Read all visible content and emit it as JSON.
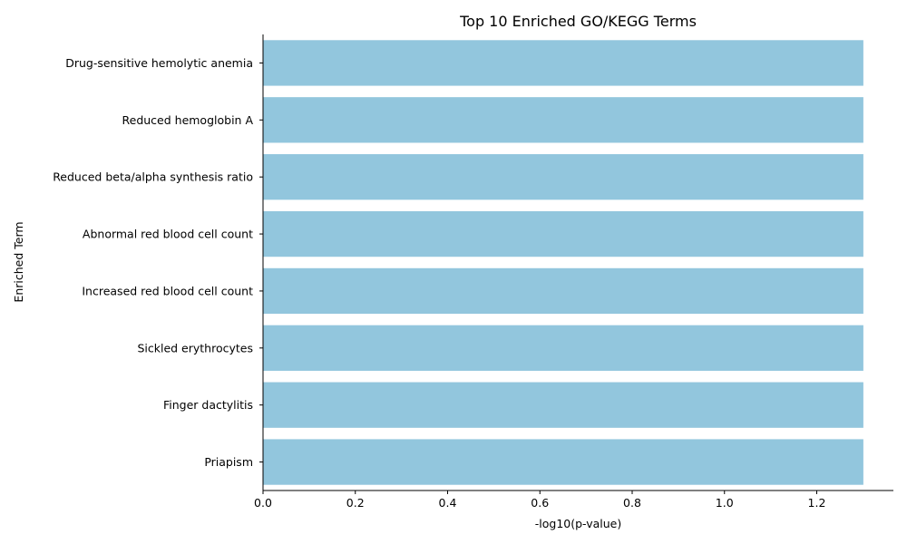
{
  "chart_data": {
    "type": "bar",
    "orientation": "horizontal",
    "title": "Top 10 Enriched GO/KEGG Terms",
    "xlabel": "-log10(p-value)",
    "ylabel": "Enriched Term",
    "categories": [
      "Drug-sensitive hemolytic anemia",
      "Reduced hemoglobin A",
      "Reduced beta/alpha synthesis ratio",
      "Abnormal red blood cell count",
      "Increased red blood cell count",
      "Sickled erythrocytes",
      "Finger dactylitis",
      "Priapism"
    ],
    "values": [
      1.301,
      1.301,
      1.301,
      1.301,
      1.301,
      1.301,
      1.301,
      1.301
    ],
    "xlim": [
      0,
      1.3661
    ],
    "xticks": [
      0.0,
      0.2,
      0.4,
      0.6,
      0.8,
      1.0,
      1.2
    ],
    "xtick_labels": [
      "0.0",
      "0.2",
      "0.4",
      "0.6",
      "0.8",
      "1.0",
      "1.2"
    ],
    "bar_color": "#92c6dd",
    "grid": false,
    "legend": "none"
  }
}
